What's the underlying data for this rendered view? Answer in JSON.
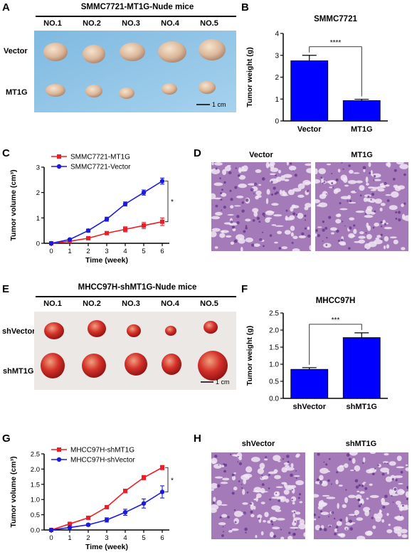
{
  "panel_letters": [
    "A",
    "B",
    "C",
    "D",
    "E",
    "F",
    "G",
    "H"
  ],
  "panel_a": {
    "title": "SMMC7721-MT1G-Nude mice",
    "columns": [
      "NO.1",
      "NO.2",
      "NO.3",
      "NO.4",
      "NO.5"
    ],
    "rows": [
      "Vector",
      "MT1G"
    ],
    "scale": "1 cm",
    "background": "#8fc4e6"
  },
  "panel_e": {
    "title": "MHCC97H-shMT1G-Nude mice",
    "columns": [
      "NO.1",
      "NO.2",
      "NO.3",
      "NO.4",
      "NO.5"
    ],
    "rows": [
      "shVector",
      "shMT1G"
    ],
    "scale": "1 cm",
    "background": "#e9e6e4"
  },
  "panel_d": {
    "labels": [
      "Vector",
      "MT1G"
    ]
  },
  "panel_h": {
    "labels": [
      "shVector",
      "shMT1G"
    ]
  },
  "chart_data": [
    {
      "id": "B",
      "type": "bar",
      "title": "SMMC7721",
      "ylabel": "Tumor weight (g)",
      "categories": [
        "Vector",
        "MT1G"
      ],
      "values": [
        2.75,
        0.93
      ],
      "errors": [
        0.25,
        0.06
      ],
      "ylim": [
        0,
        4
      ],
      "yticks": [
        "0",
        "1",
        "2",
        "3",
        "4"
      ],
      "significance": "****",
      "color": "#0000ff"
    },
    {
      "id": "C",
      "type": "line",
      "ylabel": "Tumor volume (cm³)",
      "xlabel": "Time (week)",
      "x": [
        0,
        1,
        2,
        3,
        4,
        5,
        6
      ],
      "xticks": [
        "0",
        "1",
        "2",
        "3",
        "4",
        "5",
        "6"
      ],
      "ylim": [
        0,
        3
      ],
      "yticks": [
        "0",
        "1",
        "2",
        "3"
      ],
      "significance": "*",
      "legend_position": "top-left",
      "series": [
        {
          "name": "SMMC7721-MT1G",
          "marker": "square",
          "color": "#ee1c24",
          "values": [
            0,
            0.08,
            0.2,
            0.4,
            0.55,
            0.7,
            0.85
          ],
          "errors": [
            0,
            0.02,
            0.04,
            0.06,
            0.1,
            0.12,
            0.15
          ]
        },
        {
          "name": "SMMC7721-Vector",
          "marker": "circle",
          "color": "#1a1ae6",
          "values": [
            0,
            0.15,
            0.5,
            0.95,
            1.55,
            2.0,
            2.45
          ],
          "errors": [
            0,
            0.03,
            0.06,
            0.08,
            0.08,
            0.1,
            0.12
          ]
        }
      ]
    },
    {
      "id": "F",
      "type": "bar",
      "title": "MHCC97H",
      "ylabel": "Tumor weight (g)",
      "categories": [
        "shVector",
        "shMT1G"
      ],
      "values": [
        0.85,
        1.78
      ],
      "errors": [
        0.05,
        0.14
      ],
      "ylim": [
        0,
        2.5
      ],
      "yticks": [
        "0.0",
        "0.5",
        "1.0",
        "1.5",
        "2.0",
        "2.5"
      ],
      "significance": "***",
      "color": "#0000ff"
    },
    {
      "id": "G",
      "type": "line",
      "ylabel": "Tumor volume (cm³)",
      "xlabel": "Time (week)",
      "x": [
        0,
        1,
        2,
        3,
        4,
        5,
        6
      ],
      "xticks": [
        "0",
        "1",
        "2",
        "3",
        "4",
        "5",
        "6"
      ],
      "ylim": [
        0,
        2.5
      ],
      "yticks": [
        "0.0",
        "0.5",
        "1.0",
        "1.5",
        "2.0",
        "2.5"
      ],
      "significance": "*",
      "legend_position": "top-left",
      "series": [
        {
          "name": "MHCC97H-shMT1G",
          "marker": "square",
          "color": "#ee1c24",
          "values": [
            0,
            0.2,
            0.4,
            0.75,
            1.28,
            1.72,
            2.05
          ],
          "errors": [
            0,
            0.02,
            0.03,
            0.05,
            0.06,
            0.07,
            0.07
          ]
        },
        {
          "name": "MHCC97H-shVector",
          "marker": "circle",
          "color": "#1a1ae6",
          "values": [
            0,
            0.08,
            0.17,
            0.33,
            0.58,
            0.87,
            1.25
          ],
          "errors": [
            0,
            0.02,
            0.04,
            0.07,
            0.1,
            0.15,
            0.2
          ]
        }
      ]
    }
  ]
}
